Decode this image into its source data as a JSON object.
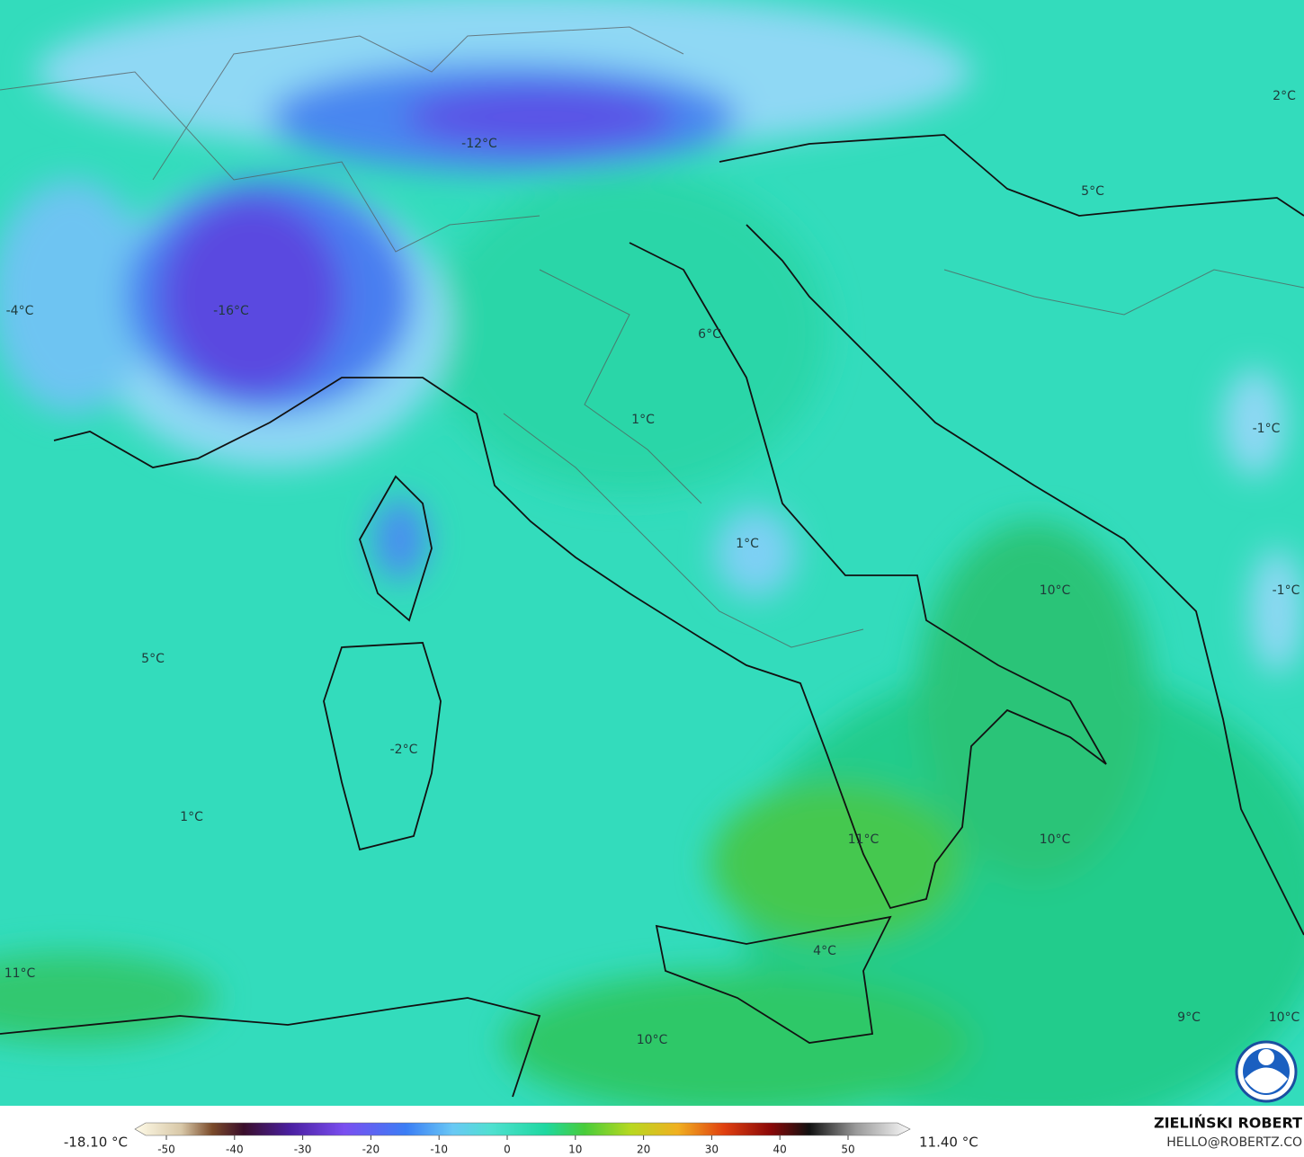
{
  "map": {
    "labels": [
      "-12°C",
      "2°C",
      "5°C",
      "-4°C",
      "-16°C",
      "6°C",
      "1°C",
      "-1°C",
      "1°C",
      "10°C",
      "-1°C",
      "5°C",
      "-2°C",
      "1°C",
      "11°C",
      "10°C",
      "4°C",
      "11°C",
      "10°C",
      "9°C",
      "10°C"
    ],
    "colorbar": {
      "min_label": "-18.10 °C",
      "max_label": "11.40 °C",
      "ticks": [
        -50,
        -40,
        -30,
        -20,
        -10,
        0,
        10,
        20,
        30,
        40,
        50
      ]
    },
    "credit": {
      "author": "ZIELIŃSKI ROBERT",
      "email": "HELLO@ROBERTZ.CO"
    }
  }
}
